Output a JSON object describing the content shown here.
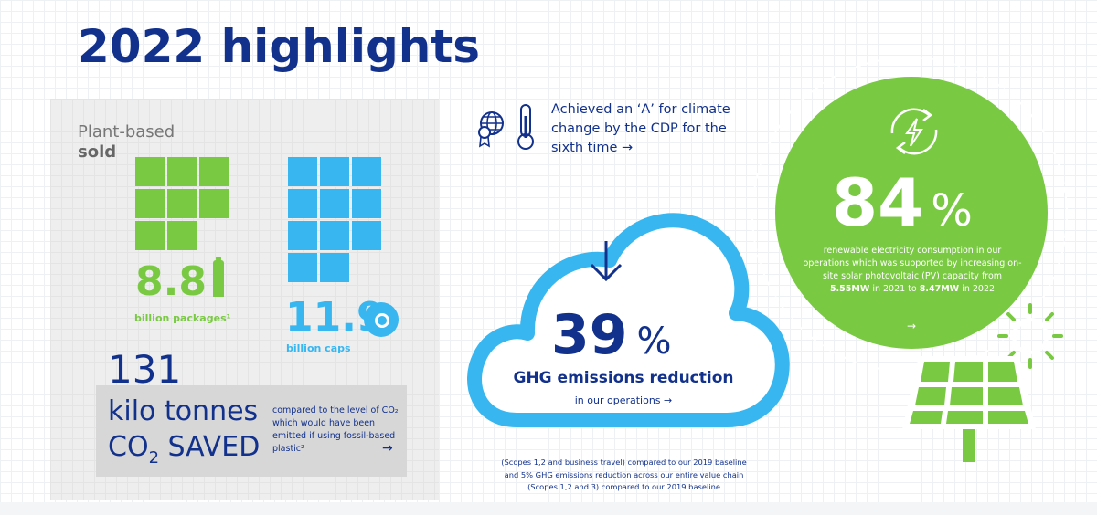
{
  "title": "2022 highlights",
  "plant": {
    "line1": "Plant-based",
    "line2": "sold",
    "packages_value": "8.8",
    "packages_label": "billion packages¹",
    "caps_value": "11.9",
    "caps_label": "billion caps"
  },
  "co2": {
    "value": "131",
    "line1": "kilo tonnes",
    "line2_pre": "CO",
    "line2_sub": "2",
    "line2_post": " SAVED",
    "note": "compared to the level of CO₂ which would have been emitted if using fossil-based plastic²",
    "arrow": "→"
  },
  "cdp": {
    "text": "Achieved an ‘A’ for climate change by the CDP for the sixth time →"
  },
  "ghg": {
    "value": "39",
    "unit": "%",
    "title": "GHG emissions reduction",
    "subtitle": "in our operations  →",
    "footnote": "(Scopes 1,2 and business travel) compared to our 2019 baseline and 5% GHG emissions reduction across our entire value chain (Scopes 1,2 and 3) compared to our 2019 baseline"
  },
  "renewable": {
    "value": "84",
    "unit": "%",
    "text_pre": "renewable electricity consumption in our operations which was supported by increasing on-site solar photovoltaic (PV) capacity from ",
    "from": "5.55MW",
    "text_mid": " in 2021 to ",
    "to": "8.47MW",
    "text_post": " in 2022",
    "arrow": "→"
  },
  "colors": {
    "navy": "#12318c",
    "green": "#7ac943",
    "blue": "#38b6f0"
  }
}
